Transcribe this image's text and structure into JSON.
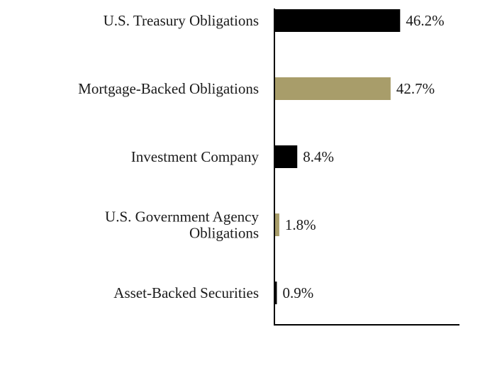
{
  "chart_data": {
    "type": "bar",
    "orientation": "horizontal",
    "categories": [
      [
        "U.S. Treasury Obligations"
      ],
      [
        "Mortgage-Backed Obligations"
      ],
      [
        "Investment Company"
      ],
      [
        "U.S. Government Agency",
        "Obligations"
      ],
      [
        "Asset-Backed Securities"
      ]
    ],
    "values": [
      46.2,
      42.7,
      8.4,
      1.8,
      0.9
    ],
    "value_labels": [
      "46.2%",
      "42.7%",
      "8.4%",
      "1.8%",
      "0.9%"
    ],
    "colors": [
      "#000000",
      "#a89d6a",
      "#000000",
      "#a89d6a",
      "#000000"
    ],
    "title": "",
    "xlabel": "",
    "ylabel": "",
    "xlim": [
      0,
      68
    ],
    "grid": false,
    "legend": "none"
  }
}
